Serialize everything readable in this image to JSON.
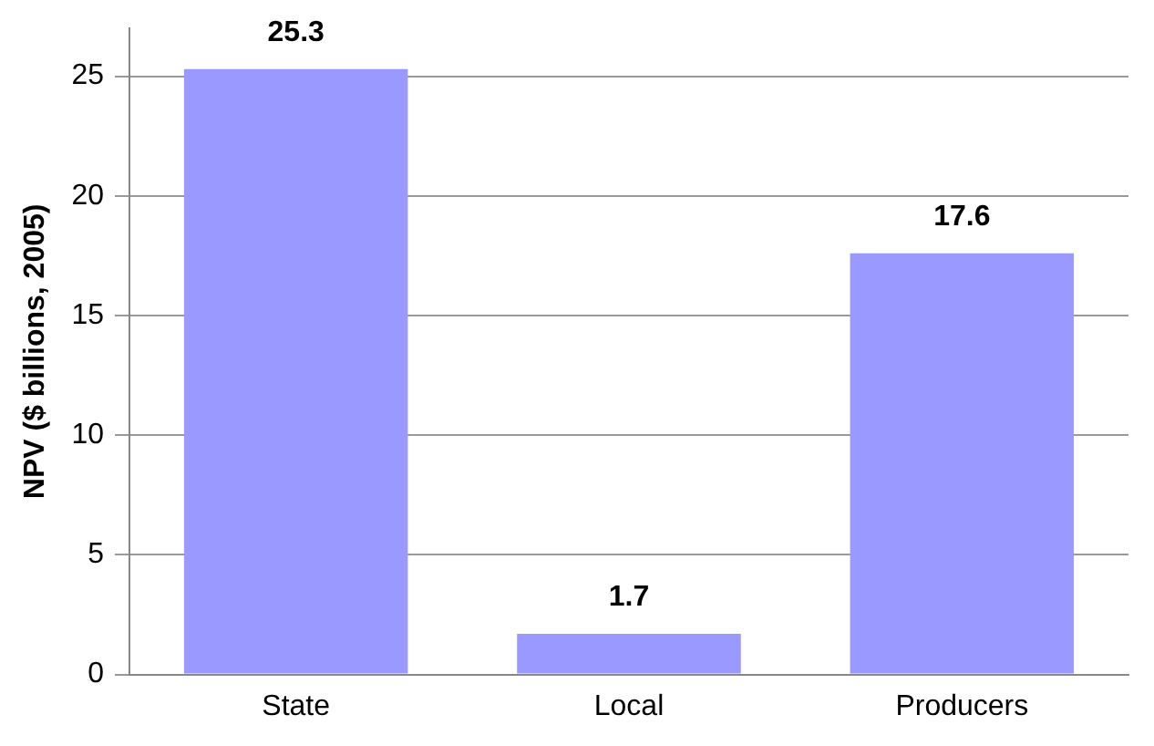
{
  "chart_data": {
    "type": "bar",
    "ylabel": "NPV ($ billions, 2005)",
    "categories": [
      "State",
      "Local",
      "Producers"
    ],
    "values": [
      25.3,
      1.7,
      17.6
    ],
    "color": "#9999ff",
    "ylim": [
      0,
      27
    ],
    "yticks": [
      0,
      5,
      10,
      15,
      20,
      25
    ],
    "grid": "y",
    "data_labels": true,
    "legend": false
  }
}
